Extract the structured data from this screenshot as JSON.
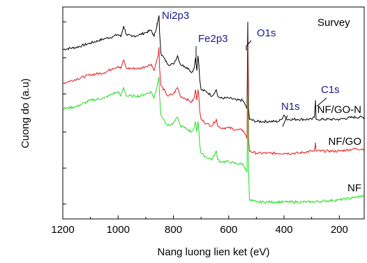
{
  "chart_data": {
    "type": "line",
    "title": "",
    "xlabel": "Nang luong lien ket (eV)",
    "ylabel": "Cuong do (a.u)",
    "xlim": [
      1200,
      110
    ],
    "x_reversed": true,
    "xticks": [
      1200,
      1000,
      800,
      600,
      400,
      200
    ],
    "ylim": [
      0,
      1
    ],
    "y_tick_labels_shown": false,
    "grid": false,
    "legend": "none",
    "panel_label": "Survey",
    "series": [
      {
        "name": "NF/GO-N",
        "color": "#000000",
        "points": [
          [
            1200,
            0.8
          ],
          [
            1150,
            0.81
          ],
          [
            1100,
            0.83
          ],
          [
            1050,
            0.85
          ],
          [
            1020,
            0.86
          ],
          [
            1000,
            0.87
          ],
          [
            990,
            0.86
          ],
          [
            980,
            0.91
          ],
          [
            970,
            0.87
          ],
          [
            950,
            0.86
          ],
          [
            920,
            0.87
          ],
          [
            900,
            0.88
          ],
          [
            880,
            0.89
          ],
          [
            870,
            0.86
          ],
          [
            860,
            0.91
          ],
          [
            855,
            0.94
          ],
          [
            852,
            0.96
          ],
          [
            850,
            0.88
          ],
          [
            845,
            0.78
          ],
          [
            820,
            0.73
          ],
          [
            800,
            0.73
          ],
          [
            785,
            0.77
          ],
          [
            775,
            0.73
          ],
          [
            760,
            0.72
          ],
          [
            745,
            0.71
          ],
          [
            735,
            0.69
          ],
          [
            725,
            0.71
          ],
          [
            720,
            0.76
          ],
          [
            715,
            0.7
          ],
          [
            711,
            0.77
          ],
          [
            708,
            0.73
          ],
          [
            705,
            0.66
          ],
          [
            700,
            0.61
          ],
          [
            680,
            0.6
          ],
          [
            660,
            0.58
          ],
          [
            645,
            0.61
          ],
          [
            640,
            0.58
          ],
          [
            630,
            0.57
          ],
          [
            600,
            0.57
          ],
          [
            570,
            0.56
          ],
          [
            550,
            0.56
          ],
          [
            540,
            0.54
          ],
          [
            534,
            0.52
          ],
          [
            531,
            0.93
          ],
          [
            528,
            0.52
          ],
          [
            525,
            0.47
          ],
          [
            500,
            0.46
          ],
          [
            450,
            0.46
          ],
          [
            420,
            0.46
          ],
          [
            410,
            0.47
          ],
          [
            400,
            0.49
          ],
          [
            395,
            0.48
          ],
          [
            390,
            0.47
          ],
          [
            350,
            0.47
          ],
          [
            300,
            0.47
          ],
          [
            290,
            0.48
          ],
          [
            286,
            0.56
          ],
          [
            284,
            0.47
          ],
          [
            280,
            0.47
          ],
          [
            200,
            0.47
          ],
          [
            150,
            0.48
          ],
          [
            110,
            0.48
          ]
        ]
      },
      {
        "name": "NF/GO",
        "color": "#e31a1c",
        "points": [
          [
            1200,
            0.64
          ],
          [
            1150,
            0.66
          ],
          [
            1100,
            0.68
          ],
          [
            1050,
            0.69
          ],
          [
            1020,
            0.71
          ],
          [
            1000,
            0.72
          ],
          [
            990,
            0.71
          ],
          [
            980,
            0.75
          ],
          [
            970,
            0.71
          ],
          [
            950,
            0.71
          ],
          [
            920,
            0.71
          ],
          [
            900,
            0.72
          ],
          [
            880,
            0.73
          ],
          [
            870,
            0.7
          ],
          [
            860,
            0.75
          ],
          [
            855,
            0.77
          ],
          [
            852,
            0.81
          ],
          [
            850,
            0.71
          ],
          [
            845,
            0.63
          ],
          [
            820,
            0.58
          ],
          [
            800,
            0.59
          ],
          [
            785,
            0.62
          ],
          [
            775,
            0.58
          ],
          [
            760,
            0.57
          ],
          [
            745,
            0.56
          ],
          [
            735,
            0.55
          ],
          [
            725,
            0.57
          ],
          [
            720,
            0.61
          ],
          [
            715,
            0.56
          ],
          [
            711,
            0.61
          ],
          [
            708,
            0.58
          ],
          [
            705,
            0.51
          ],
          [
            700,
            0.47
          ],
          [
            680,
            0.45
          ],
          [
            660,
            0.44
          ],
          [
            645,
            0.47
          ],
          [
            640,
            0.44
          ],
          [
            630,
            0.43
          ],
          [
            600,
            0.43
          ],
          [
            570,
            0.42
          ],
          [
            550,
            0.42
          ],
          [
            540,
            0.4
          ],
          [
            534,
            0.38
          ],
          [
            531,
            0.82
          ],
          [
            528,
            0.38
          ],
          [
            525,
            0.32
          ],
          [
            500,
            0.31
          ],
          [
            450,
            0.31
          ],
          [
            400,
            0.31
          ],
          [
            350,
            0.31
          ],
          [
            300,
            0.32
          ],
          [
            290,
            0.32
          ],
          [
            286,
            0.36
          ],
          [
            284,
            0.32
          ],
          [
            280,
            0.32
          ],
          [
            200,
            0.32
          ],
          [
            150,
            0.33
          ],
          [
            110,
            0.33
          ]
        ]
      },
      {
        "name": "NF",
        "color": "#22dd22",
        "points": [
          [
            1200,
            0.52
          ],
          [
            1150,
            0.53
          ],
          [
            1100,
            0.56
          ],
          [
            1050,
            0.57
          ],
          [
            1020,
            0.59
          ],
          [
            1000,
            0.6
          ],
          [
            990,
            0.58
          ],
          [
            980,
            0.62
          ],
          [
            970,
            0.58
          ],
          [
            950,
            0.58
          ],
          [
            920,
            0.58
          ],
          [
            900,
            0.59
          ],
          [
            880,
            0.6
          ],
          [
            870,
            0.57
          ],
          [
            860,
            0.62
          ],
          [
            855,
            0.65
          ],
          [
            852,
            0.67
          ],
          [
            850,
            0.58
          ],
          [
            845,
            0.49
          ],
          [
            820,
            0.44
          ],
          [
            800,
            0.45
          ],
          [
            785,
            0.48
          ],
          [
            775,
            0.44
          ],
          [
            760,
            0.43
          ],
          [
            745,
            0.42
          ],
          [
            735,
            0.41
          ],
          [
            725,
            0.43
          ],
          [
            720,
            0.46
          ],
          [
            715,
            0.41
          ],
          [
            711,
            0.46
          ],
          [
            708,
            0.42
          ],
          [
            705,
            0.35
          ],
          [
            700,
            0.31
          ],
          [
            680,
            0.29
          ],
          [
            660,
            0.28
          ],
          [
            645,
            0.32
          ],
          [
            640,
            0.28
          ],
          [
            630,
            0.27
          ],
          [
            600,
            0.27
          ],
          [
            570,
            0.26
          ],
          [
            550,
            0.26
          ],
          [
            540,
            0.24
          ],
          [
            534,
            0.22
          ],
          [
            531,
            0.58
          ],
          [
            528,
            0.22
          ],
          [
            525,
            0.09
          ],
          [
            500,
            0.08
          ],
          [
            450,
            0.08
          ],
          [
            400,
            0.08
          ],
          [
            350,
            0.08
          ],
          [
            300,
            0.08
          ],
          [
            200,
            0.09
          ],
          [
            150,
            0.1
          ],
          [
            110,
            0.11
          ]
        ]
      }
    ],
    "annotations": [
      {
        "text": "Ni2p3",
        "at_x": 852,
        "at_y": 0.96,
        "color": "#1a1a8c"
      },
      {
        "text": "Fe2p3",
        "at_x": 711,
        "at_y": 0.77,
        "color": "#1a1a8c"
      },
      {
        "text": "O1s",
        "at_x": 531,
        "at_y": 0.93,
        "color": "#1a1a8c"
      },
      {
        "text": "N1s",
        "at_x": 400,
        "at_y": 0.49,
        "color": "#1a1a8c"
      },
      {
        "text": "C1s",
        "at_x": 286,
        "at_y": 0.56,
        "color": "#1a1a8c"
      }
    ]
  }
}
